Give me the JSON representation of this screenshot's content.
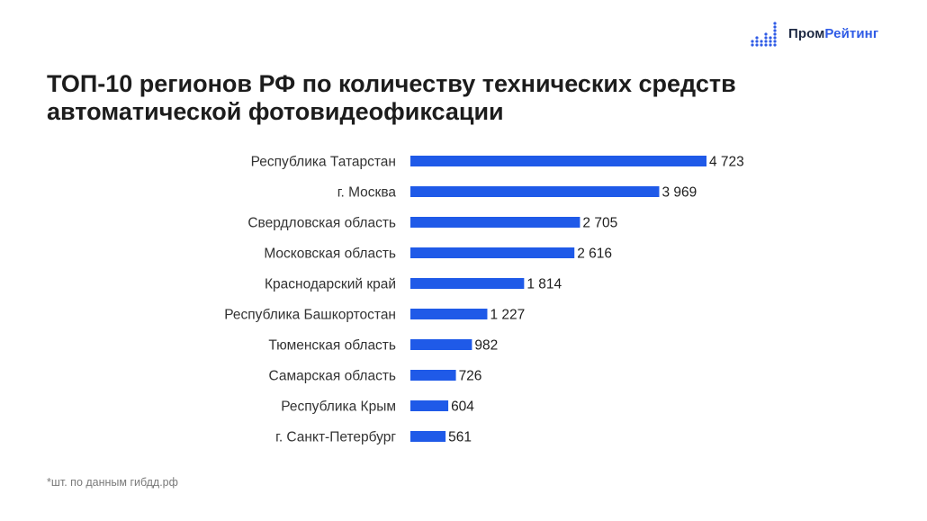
{
  "brand": {
    "part1": "Пром",
    "part2": "Рейтинг",
    "icon": "dots-chart-logo-icon"
  },
  "title": {
    "line1": "ТОП-10 регионов РФ по количеству технических средств",
    "line2": "автоматической фотовидеофиксации"
  },
  "footnote": "*шт. по данным гибдд.рф",
  "colors": {
    "bar": "#1f5ae8",
    "brand_accent": "#2f5be6",
    "text": "#1e1e1e"
  },
  "chart_data": {
    "type": "bar",
    "orientation": "horizontal",
    "categories": [
      "Республика Татарстан",
      "г. Москва",
      "Свердловская область",
      "Московская область",
      "Краснодарский край",
      "Республика Башкортостан",
      "Тюменская область",
      "Самарская область",
      "Республика Крым",
      "г. Санкт-Петербург"
    ],
    "values": [
      4723,
      3969,
      2705,
      2616,
      1814,
      1227,
      982,
      726,
      604,
      561
    ],
    "value_labels": [
      "4 723",
      "3 969",
      "2 705",
      "2 616",
      "1 814",
      "1 227",
      "982",
      "726",
      "604",
      "561"
    ],
    "grid": false,
    "legend": "none"
  }
}
